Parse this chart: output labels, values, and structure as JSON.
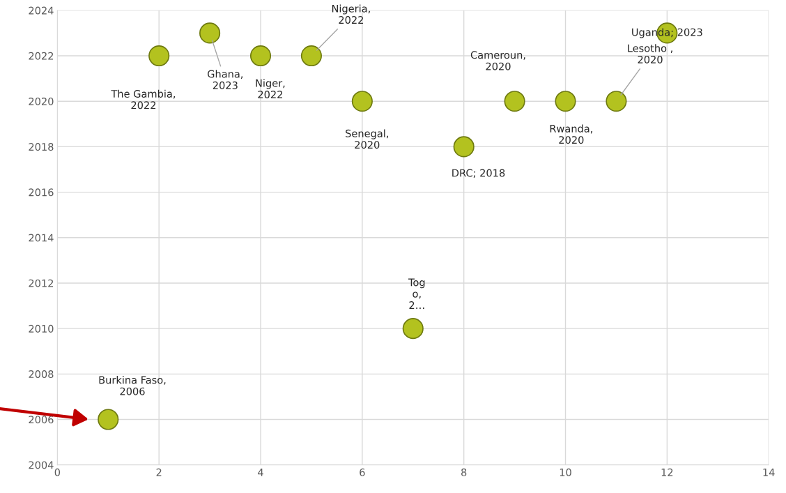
{
  "chart_data": {
    "type": "scatter",
    "x": [
      1,
      2,
      3,
      4,
      5,
      6,
      7,
      8,
      9,
      10,
      11,
      12
    ],
    "values": [
      2006,
      2022,
      2023,
      2022,
      2022,
      2020,
      2010,
      2018,
      2020,
      2020,
      2020,
      2023
    ],
    "value_labels": [
      "Burkina Faso,\n2006",
      "The Gambia,\n2022",
      "Ghana,\n2023",
      "Niger,\n2022",
      "Nigeria,\n2022",
      "Senegal,\n2020",
      "Tog\no,\n2…",
      "DRC; 2018",
      "Cameroun,\n2020",
      "Rwanda,\n2020",
      "Lesotho ,\n2020",
      "Uganda; 2023"
    ],
    "color": "#b3c21f",
    "marker": "circle",
    "xlim": [
      0,
      14
    ],
    "xticks": [
      0,
      2,
      4,
      6,
      8,
      10,
      12,
      14
    ],
    "ylim": [
      2004,
      2024
    ],
    "yticks": [
      2004,
      2006,
      2008,
      2010,
      2012,
      2014,
      2016,
      2018,
      2020,
      2022,
      2024
    ],
    "grid": true
  }
}
